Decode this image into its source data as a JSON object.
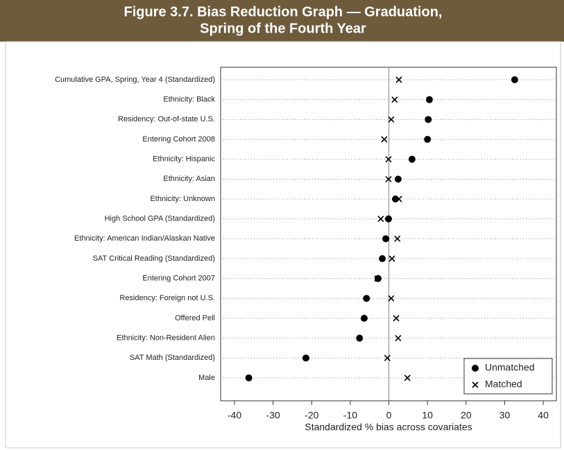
{
  "chart_data": {
    "type": "dot",
    "title": [
      "Figure 3.7. Bias Reduction Graph — Graduation,",
      "Spring of the Fourth Year"
    ],
    "xlabel": "Standardized % bias across covariates",
    "categories": [
      "Cumulative GPA, Spring, Year 4 (Standardized)",
      "Ethnicity: Black",
      "Residency:  Out-of-state U.S.",
      "Entering Cohort 2008",
      "Ethnicity: Hispanic",
      "Ethnicity: Asian",
      "Ethnicity: Unknown",
      "High School GPA (Standardized)",
      "Ethnicity:  American Indian/Alaskan Native",
      "SAT Critical Reading (Standardized)",
      "Entering Cohort 2007",
      "Residency: Foreign not U.S.",
      "Offered Pell",
      "Ethnicity: Non-Resident Alien",
      "SAT Math (Standardized)",
      "Male"
    ],
    "series": [
      {
        "name": "Unmatched",
        "color": "#000000",
        "marker": "circle",
        "values": [
          32.6,
          10.5,
          10.2,
          10.0,
          6.0,
          2.4,
          1.7,
          -0.1,
          -0.8,
          -1.7,
          -2.8,
          -5.8,
          -6.4,
          -7.6,
          -21.5,
          -36.3
        ]
      },
      {
        "name": "Matched",
        "color": "#000000",
        "marker": "x",
        "values": [
          2.6,
          1.5,
          0.6,
          -1.2,
          -0.1,
          -0.1,
          2.6,
          -2.1,
          2.2,
          0.8,
          -3.0,
          0.6,
          1.9,
          2.4,
          -0.4,
          4.8
        ]
      }
    ],
    "xlim": [
      -43.6,
      43.4
    ],
    "xticks": [
      -40,
      -30,
      -20,
      -10,
      0,
      10,
      20,
      30,
      40
    ],
    "grid": true,
    "legend": "lower right"
  }
}
